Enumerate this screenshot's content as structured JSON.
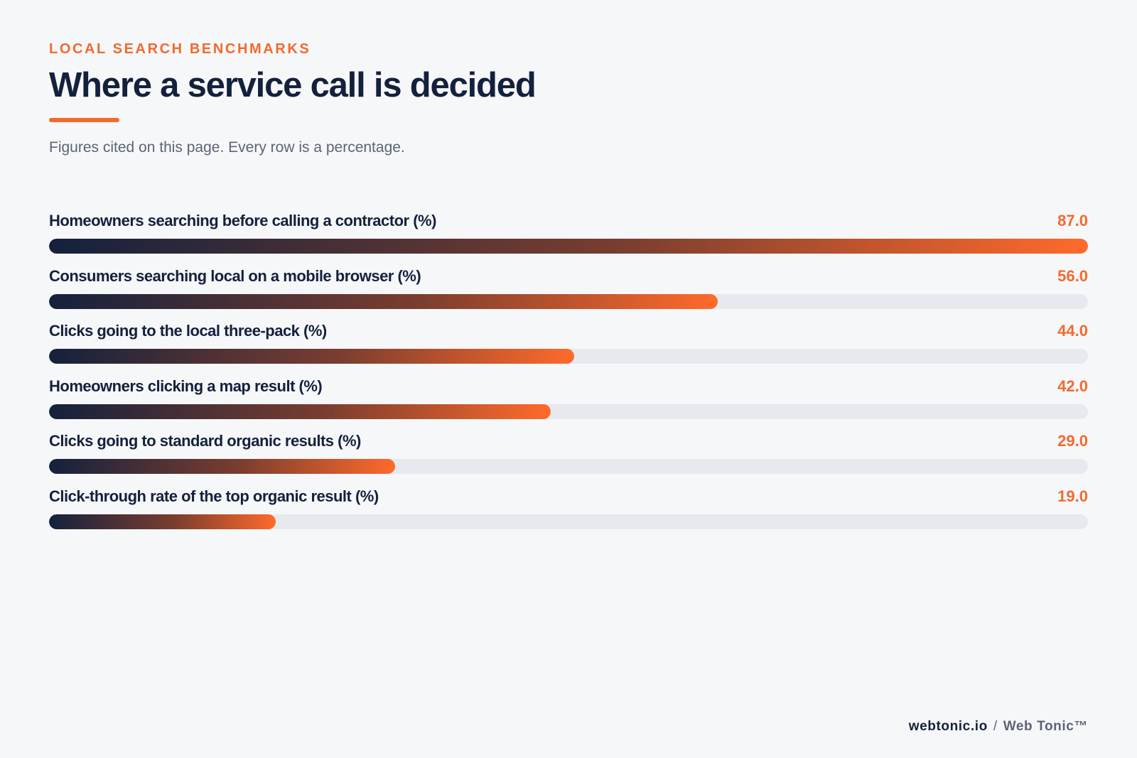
{
  "header": {
    "kicker": "LOCAL SEARCH BENCHMARKS",
    "title": "Where a service call is decided",
    "subtitle": "Figures cited on this page. Every row is a percentage."
  },
  "colors": {
    "accent": "#f26a2e",
    "ink": "#14213d",
    "track": "#e6e9ee",
    "background": "#f6f7f9"
  },
  "chart_data": {
    "type": "bar",
    "orientation": "horizontal",
    "categories": [
      "Homeowners searching before calling a contractor (%)",
      "Consumers searching local on a mobile browser (%)",
      "Clicks going to the local three-pack (%)",
      "Homeowners clicking a map result (%)",
      "Clicks going to standard organic results (%)",
      "Click-through rate of the top organic result (%)"
    ],
    "values": [
      87.0,
      56.0,
      44.0,
      42.0,
      29.0,
      19.0
    ],
    "value_labels": [
      "87.0",
      "56.0",
      "44.0",
      "42.0",
      "29.0",
      "19.0"
    ],
    "xlim": [
      0,
      87
    ]
  },
  "footer": {
    "site": "webtonic.io",
    "separator": "/",
    "brand": "Web Tonic™"
  }
}
